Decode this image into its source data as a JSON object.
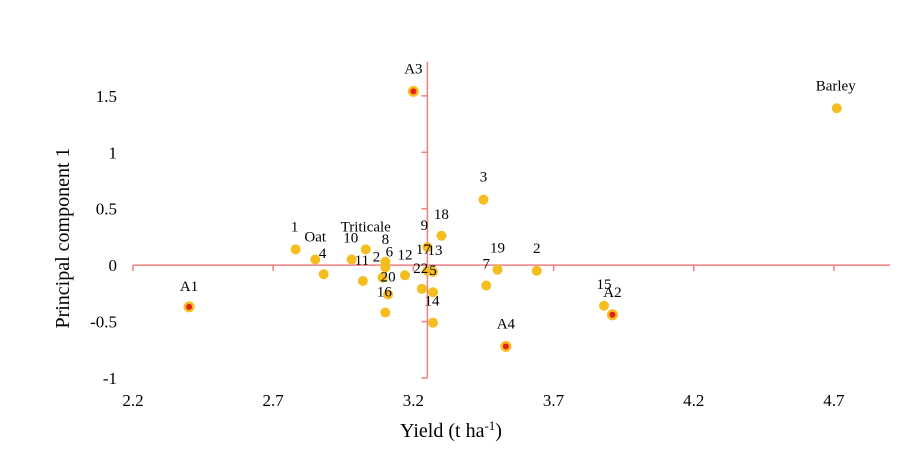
{
  "chart_data": {
    "type": "scatter",
    "title": "",
    "xlabel": "Yield (t ha",
    "xlabel_sup": "-1",
    "xlabel_end": ")",
    "ylabel": "Principal component 1",
    "xlim": [
      2.2,
      4.9
    ],
    "ylim": [
      -1,
      1.8
    ],
    "x_axis_crosses_y_at": 0,
    "y_axis_crosses_x_at": 3.25,
    "x_ticks": [
      2.2,
      2.7,
      3.2,
      3.7,
      4.2,
      4.7
    ],
    "x_tick_labels": [
      "2.2",
      "2.7",
      "3.2",
      "3.7",
      "4.2",
      "4.7"
    ],
    "y_ticks": [
      -1,
      -0.5,
      0,
      0.5,
      1,
      1.5
    ],
    "y_tick_labels": [
      "-1",
      "-0.5",
      "0",
      "0.5",
      "1",
      "1.5"
    ],
    "grid": false,
    "colors": {
      "point_fill": "#f5bd1f",
      "highlight_center": "#e8201c",
      "axis": "#f08080"
    },
    "points": [
      {
        "label": "1",
        "x": 2.78,
        "y": 0.14
      },
      {
        "label": "Oat",
        "x": 2.85,
        "y": 0.05
      },
      {
        "label": "4",
        "x": 2.88,
        "y": -0.08
      },
      {
        "label": "10",
        "x": 2.98,
        "y": 0.05
      },
      {
        "label": "Triticale",
        "x": 3.03,
        "y": 0.14
      },
      {
        "label": "11",
        "x": 3.02,
        "y": -0.14
      },
      {
        "label": "2",
        "x": 3.09,
        "y": -0.11
      },
      {
        "label": "8",
        "x": 3.1,
        "y": 0.03
      },
      {
        "label": "6",
        "x": 3.1,
        "y": -0.02
      },
      {
        "label": "12",
        "x": 3.17,
        "y": -0.09
      },
      {
        "label": "20",
        "x": 3.11,
        "y": -0.26
      },
      {
        "label": "16",
        "x": 3.1,
        "y": -0.42
      },
      {
        "label": "22",
        "x": 3.23,
        "y": -0.21
      },
      {
        "label": "9",
        "x": 3.25,
        "y": 0.16
      },
      {
        "label": "13",
        "x": 3.27,
        "y": -0.06
      },
      {
        "label": "5",
        "x": 3.27,
        "y": -0.24
      },
      {
        "label": "14",
        "x": 3.27,
        "y": -0.51
      },
      {
        "label": "17",
        "x": 3.25,
        "y": -0.05
      },
      {
        "label": "18",
        "x": 3.3,
        "y": 0.26
      },
      {
        "label": "3",
        "x": 3.45,
        "y": 0.58
      },
      {
        "label": "7",
        "x": 3.46,
        "y": -0.18
      },
      {
        "label": "19",
        "x": 3.5,
        "y": -0.04
      },
      {
        "label": "2",
        "x": 3.64,
        "y": -0.05
      },
      {
        "label": "15",
        "x": 3.88,
        "y": -0.36
      },
      {
        "label": "Barley",
        "x": 4.71,
        "y": 1.39
      }
    ],
    "highlighted_points": [
      {
        "label": "A1",
        "x": 2.4,
        "y": -0.37
      },
      {
        "label": "A2",
        "x": 3.91,
        "y": -0.44
      },
      {
        "label": "A3",
        "x": 3.2,
        "y": 1.54
      },
      {
        "label": "A4",
        "x": 3.53,
        "y": -0.72
      }
    ]
  }
}
